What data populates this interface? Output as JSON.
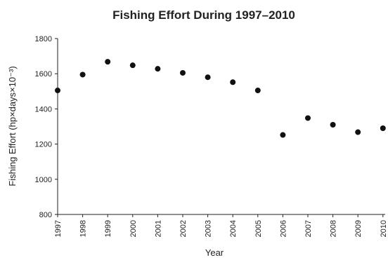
{
  "chart_data": {
    "type": "scatter",
    "title": "Fishing Effort During 1997–2010",
    "xlabel": "Year",
    "ylabel": "Fishing Effort (hp×days×10⁻³)",
    "x": [
      "1997",
      "1998",
      "1999",
      "2000",
      "2001",
      "2002",
      "2003",
      "2004",
      "2005",
      "2006",
      "2007",
      "2008",
      "2009",
      "2010"
    ],
    "values": [
      1505,
      1595,
      1668,
      1648,
      1628,
      1605,
      1580,
      1552,
      1505,
      1252,
      1348,
      1310,
      1268,
      1290
    ],
    "ylim": [
      800,
      1800
    ],
    "yticks": [
      "800",
      "1000",
      "1200",
      "1400",
      "1600",
      "1800"
    ],
    "grid": false,
    "legend": "none"
  }
}
